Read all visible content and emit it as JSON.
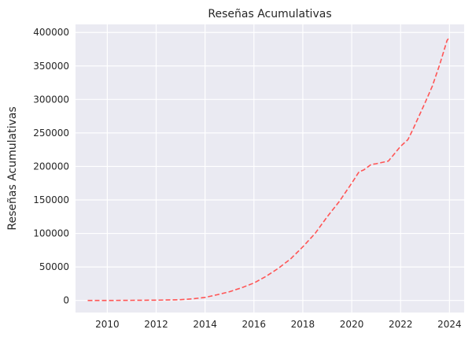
{
  "chart_data": {
    "type": "line",
    "title": "Reseñas Acumulativas",
    "xlabel": "",
    "ylabel": "Reseñas Acumulativas",
    "xlim": [
      2008.7,
      2024.6
    ],
    "ylim": [
      -18000,
      412000
    ],
    "x_ticks": [
      2010,
      2012,
      2014,
      2016,
      2018,
      2020,
      2022,
      2024
    ],
    "y_ticks": [
      0,
      50000,
      100000,
      150000,
      200000,
      250000,
      300000,
      350000,
      400000
    ],
    "grid": true,
    "series": [
      {
        "line_style": "dashed",
        "color": "#ff5555",
        "x": [
          2009.2,
          2010.0,
          2011.0,
          2012.0,
          2013.0,
          2013.5,
          2014.0,
          2014.5,
          2015.0,
          2015.5,
          2016.0,
          2016.5,
          2017.0,
          2017.5,
          2018.0,
          2018.5,
          2019.0,
          2019.5,
          2020.0,
          2020.3,
          2020.5,
          2020.8,
          2021.0,
          2021.5,
          2022.0,
          2022.3,
          2022.5,
          2023.0,
          2023.3,
          2023.6,
          2023.9,
          2024.0
        ],
        "y": [
          0,
          0,
          200,
          500,
          1200,
          2500,
          4500,
          8500,
          13000,
          19000,
          26000,
          36000,
          48000,
          62000,
          80000,
          100000,
          125000,
          148000,
          175000,
          192000,
          195000,
          203000,
          204000,
          208000,
          230000,
          240000,
          255000,
          295000,
          320000,
          352000,
          388000,
          393000
        ]
      }
    ]
  },
  "colors": {
    "plot_background": "#eaeaf2",
    "grid": "#ffffff",
    "line": "#ff5555",
    "text": "#262626"
  }
}
